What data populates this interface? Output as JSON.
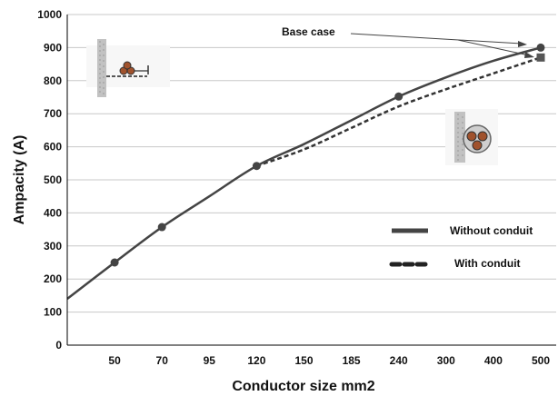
{
  "chart_data": {
    "type": "line",
    "x_categories": [
      "",
      "50",
      "70",
      "95",
      "120",
      "150",
      "185",
      "240",
      "300",
      "400",
      "500"
    ],
    "xlabel": "Conductor size mm2",
    "ylabel": "Ampacity (A)",
    "ylim": [
      0,
      1000
    ],
    "yticks": [
      0,
      100,
      200,
      300,
      400,
      500,
      600,
      700,
      800,
      900,
      1000
    ],
    "grid": true,
    "series": [
      {
        "name": "Without conduit",
        "style": "solid",
        "color": "#444444",
        "x_index": [
          0,
          1,
          2,
          3,
          4,
          5,
          6,
          7,
          8,
          9,
          10
        ],
        "values": [
          140,
          250,
          357,
          450,
          542,
          608,
          680,
          752,
          810,
          860,
          900
        ],
        "markers_at_index": [
          1,
          2,
          4,
          7,
          10
        ]
      },
      {
        "name": "With conduit",
        "style": "dashed",
        "color": "#333333",
        "x_index": [
          4,
          5,
          6,
          7,
          8,
          9,
          10
        ],
        "values": [
          542,
          592,
          657,
          722,
          774,
          822,
          870
        ],
        "markers_at_index": [
          10
        ]
      }
    ],
    "legend_position": "right-middle",
    "annotations": [
      {
        "text": "Base case"
      }
    ],
    "inset_icons": [
      "cable-trefoil-wall-icon",
      "cable-in-conduit-icon"
    ]
  }
}
